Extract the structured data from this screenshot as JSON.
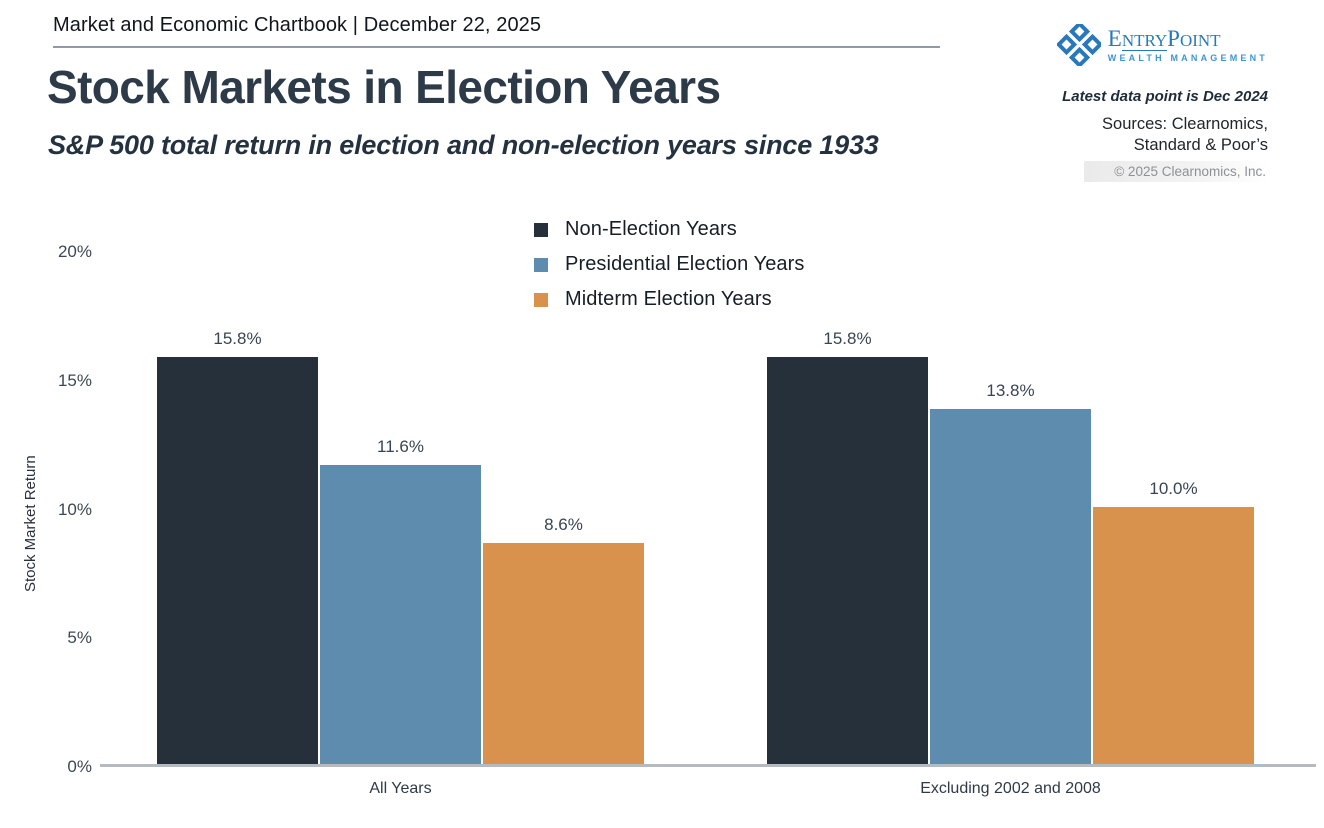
{
  "header": {
    "text": "Market and Economic Chartbook | December 22, 2025"
  },
  "branding": {
    "logo_parts": {
      "e": "E",
      "ntry": "NTRY",
      "p": "P",
      "oint": "OINT"
    },
    "logo_line2": "WEALTH MANAGEMENT",
    "logo_color": "#2779bc"
  },
  "notes": {
    "latest": "Latest data point is Dec 2024",
    "sources_line1": "Sources: Clearnomics,",
    "sources_line2": "Standard & Poor’s",
    "copyright": "© 2025 Clearnomics, Inc."
  },
  "chart_data": {
    "type": "bar",
    "title": "Stock Markets in Election Years",
    "subtitle": "S&P 500 total return in election and non-election years since 1933",
    "ylabel": "Stock Market Return",
    "ylim": [
      0,
      20
    ],
    "grid": false,
    "legend_position": "top-center",
    "categories": [
      "All Years",
      "Excluding 2002 and 2008"
    ],
    "series": [
      {
        "name": "Non-Election Years",
        "color": "#26303a",
        "values": [
          15.8,
          15.8
        ],
        "labels": [
          "15.8%",
          "15.8%"
        ]
      },
      {
        "name": "Presidential Election Years",
        "color": "#5d8caf",
        "values": [
          11.6,
          13.8
        ],
        "labels": [
          "11.6%",
          "13.8%"
        ]
      },
      {
        "name": "Midterm Election Years",
        "color": "#d9914e",
        "values": [
          8.6,
          10.0
        ],
        "labels": [
          "8.6%",
          "10.0%"
        ]
      }
    ],
    "y_ticks": [
      {
        "label": "0%",
        "value": 0
      },
      {
        "label": "5%",
        "value": 5
      },
      {
        "label": "10%",
        "value": 10
      },
      {
        "label": "15%",
        "value": 15
      },
      {
        "label": "20%",
        "value": 20
      }
    ]
  }
}
